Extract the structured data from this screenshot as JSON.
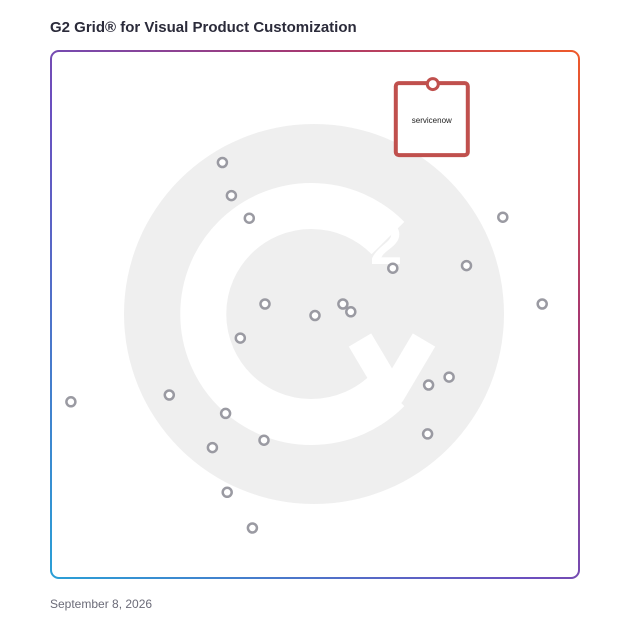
{
  "title": "G2 Grid® for Visual Product Customization",
  "date": "September 8, 2026",
  "colors": {
    "dot": "#9a9aa2",
    "featured_frame": "#c0504d",
    "watermark": "#efefef",
    "quadrant_line_h": "#b34a6a",
    "quadrant_line_v": "#8a5a9a"
  },
  "icons": {
    "watermark": "g2-logo-watermark-icon"
  },
  "chart_data": {
    "type": "scatter",
    "title": "G2 Grid® for Visual Product Customization",
    "xlabel": "",
    "ylabel": "",
    "xlim": [
      0,
      100
    ],
    "ylim": [
      0,
      100
    ],
    "featured": {
      "label": "servicenow",
      "x": 72.4,
      "y": 93.9
    },
    "points": [
      {
        "x": 32.4,
        "y": 79.0
      },
      {
        "x": 34.1,
        "y": 72.7
      },
      {
        "x": 37.5,
        "y": 68.4
      },
      {
        "x": 85.7,
        "y": 68.6
      },
      {
        "x": 78.8,
        "y": 59.4
      },
      {
        "x": 64.8,
        "y": 58.9
      },
      {
        "x": 93.2,
        "y": 52.1
      },
      {
        "x": 40.5,
        "y": 52.1
      },
      {
        "x": 55.3,
        "y": 52.1
      },
      {
        "x": 56.8,
        "y": 50.6
      },
      {
        "x": 50.0,
        "y": 49.9
      },
      {
        "x": 35.8,
        "y": 45.6
      },
      {
        "x": 75.5,
        "y": 38.2
      },
      {
        "x": 71.6,
        "y": 36.7
      },
      {
        "x": 3.6,
        "y": 33.5
      },
      {
        "x": 22.3,
        "y": 34.8
      },
      {
        "x": 33.0,
        "y": 31.3
      },
      {
        "x": 71.4,
        "y": 27.4
      },
      {
        "x": 40.3,
        "y": 26.2
      },
      {
        "x": 30.5,
        "y": 24.8
      },
      {
        "x": 33.3,
        "y": 16.3
      },
      {
        "x": 38.1,
        "y": 9.5
      }
    ]
  }
}
